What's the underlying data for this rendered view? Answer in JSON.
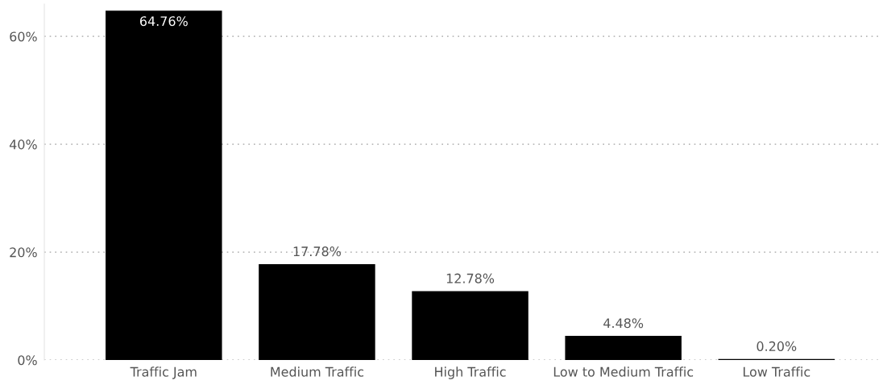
{
  "chart_data": {
    "type": "bar",
    "categories": [
      "Traffic Jam",
      "Medium Traffic",
      "High Traffic",
      "Low to Medium Traffic",
      "Low Traffic"
    ],
    "values": [
      64.76,
      17.78,
      12.78,
      4.48,
      0.2
    ],
    "color": "#000000",
    "value_labels": [
      "64.76%",
      "17.78%",
      "12.78%",
      "4.48%",
      "0.20%"
    ],
    "yticks": [
      {
        "value": 0,
        "label": "0%"
      },
      {
        "value": 20,
        "label": "20%"
      },
      {
        "value": 40,
        "label": "40%"
      },
      {
        "value": 60,
        "label": "60%"
      }
    ],
    "ylim": [
      0,
      66
    ],
    "grid": "y"
  }
}
